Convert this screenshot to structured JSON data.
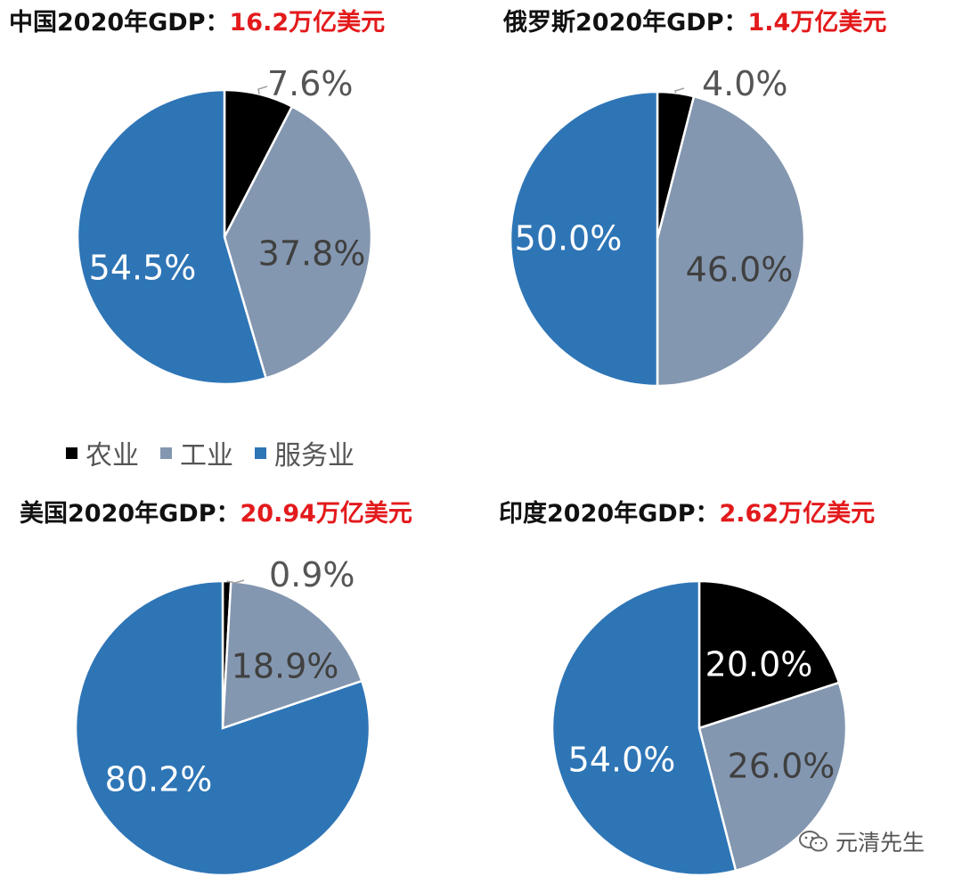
{
  "titles": [
    {
      "label": "中国2020年GDP：",
      "value": "16.2万亿美元"
    },
    {
      "label": "俄罗斯2020年GDP：",
      "value": "1.4万亿美元"
    },
    {
      "label": "美国2020年GDP：",
      "value": "20.94万亿美元"
    },
    {
      "label": "印度2020年GDP：",
      "value": "2.62万亿美元"
    }
  ],
  "legend": [
    {
      "label": "农业",
      "color": "#000000"
    },
    {
      "label": "工业",
      "color": "#8497b0"
    },
    {
      "label": "服务业",
      "color": "#2e75b6"
    }
  ],
  "watermark": {
    "text": "元清先生",
    "icon": "wechat-icon"
  },
  "chart_data": [
    {
      "type": "pie",
      "title": "中国2020年GDP：16.2万亿美元",
      "categories": [
        "农业",
        "工业",
        "服务业"
      ],
      "values": [
        7.6,
        37.8,
        54.5
      ],
      "labels": [
        "7.6%",
        "37.8%",
        "54.5%"
      ]
    },
    {
      "type": "pie",
      "title": "俄罗斯2020年GDP：1.4万亿美元",
      "categories": [
        "农业",
        "工业",
        "服务业"
      ],
      "values": [
        4.0,
        46.0,
        50.0
      ],
      "labels": [
        "4.0%",
        "46.0%",
        "50.0%"
      ]
    },
    {
      "type": "pie",
      "title": "美国2020年GDP：20.94万亿美元",
      "categories": [
        "农业",
        "工业",
        "服务业"
      ],
      "values": [
        0.9,
        18.9,
        80.2
      ],
      "labels": [
        "0.9%",
        "18.9%",
        "80.2%"
      ]
    },
    {
      "type": "pie",
      "title": "印度2020年GDP：2.62万亿美元",
      "categories": [
        "农业",
        "工业",
        "服务业"
      ],
      "values": [
        20.0,
        26.0,
        54.0
      ],
      "labels": [
        "20.0%",
        "26.0%",
        "54.0%"
      ]
    }
  ]
}
